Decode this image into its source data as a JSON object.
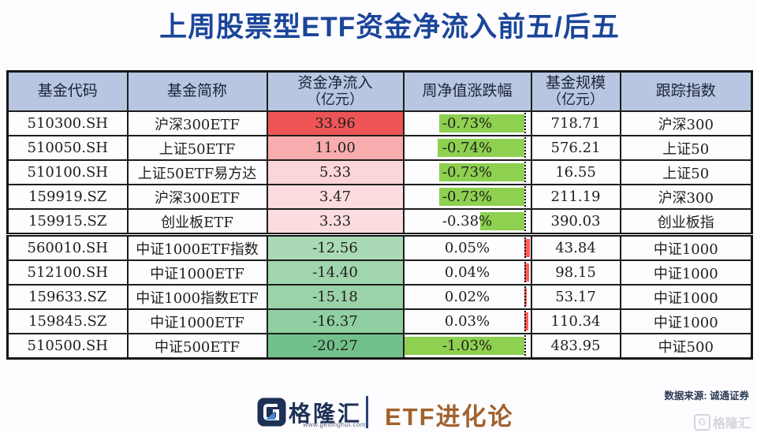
{
  "title": {
    "text": "上周股票型ETF资金净流入前五/后五",
    "color": "#1b459a"
  },
  "table": {
    "headers": [
      {
        "label": "基金代码",
        "sub": ""
      },
      {
        "label": "基金简称",
        "sub": ""
      },
      {
        "label": "资金净流入",
        "sub": "（亿元）"
      },
      {
        "label": "周净值涨跌幅",
        "sub": ""
      },
      {
        "label": "基金规模",
        "sub": "（亿元）"
      },
      {
        "label": "跟踪指数",
        "sub": ""
      }
    ],
    "bar": {
      "axis_pct": 95.37,
      "range": 1.08,
      "neg_color": "#8ed04f",
      "pos_color": "#ff5d5d"
    },
    "rows": [
      {
        "code": "510300.SH",
        "name": "沪深300ETF",
        "flow": "33.96",
        "flow_bg": "#ee5456",
        "change": "-0.73%",
        "change_value": -0.73,
        "scale": "718.71",
        "index": "沪深300",
        "group": "top"
      },
      {
        "code": "510050.SH",
        "name": "上证50ETF",
        "flow": "11.00",
        "flow_bg": "#f8acae",
        "change": "-0.74%",
        "change_value": -0.74,
        "scale": "576.21",
        "index": "上证50",
        "group": "top"
      },
      {
        "code": "510100.SH",
        "name": "上证50ETF易方达",
        "flow": "5.33",
        "flow_bg": "#fbd5d7",
        "change": "-0.73%",
        "change_value": -0.73,
        "scale": "16.55",
        "index": "上证50",
        "group": "top"
      },
      {
        "code": "159919.SZ",
        "name": "沪深300ETF",
        "flow": "3.47",
        "flow_bg": "#fcdcde",
        "change": "-0.73%",
        "change_value": -0.73,
        "scale": "211.19",
        "index": "沪深300",
        "group": "top"
      },
      {
        "code": "159915.SZ",
        "name": "创业板ETF",
        "flow": "3.33",
        "flow_bg": "#fcdddf",
        "change": "-0.38%",
        "change_value": -0.38,
        "scale": "390.03",
        "index": "创业板指",
        "group": "top"
      },
      {
        "code": "560010.SH",
        "name": "中证1000ETF指数",
        "flow": "-12.56",
        "flow_bg": "#aad9b6",
        "change": "0.05%",
        "change_value": 0.05,
        "scale": "43.84",
        "index": "中证1000",
        "group": "bottom"
      },
      {
        "code": "512100.SH",
        "name": "中证1000ETF",
        "flow": "-14.40",
        "flow_bg": "#a0d5ae",
        "change": "0.04%",
        "change_value": 0.04,
        "scale": "98.15",
        "index": "中证1000",
        "group": "bottom"
      },
      {
        "code": "159633.SZ",
        "name": "中证1000指数ETF",
        "flow": "-15.18",
        "flow_bg": "#9bd3a9",
        "change": "0.02%",
        "change_value": 0.02,
        "scale": "53.17",
        "index": "中证1000",
        "group": "bottom"
      },
      {
        "code": "159845.SZ",
        "name": "中证1000ETF",
        "flow": "-16.37",
        "flow_bg": "#90cfa1",
        "change": "0.03%",
        "change_value": 0.03,
        "scale": "110.34",
        "index": "中证1000",
        "group": "bottom"
      },
      {
        "code": "510500.SH",
        "name": "中证500ETF",
        "flow": "-20.27",
        "flow_bg": "#73c18a",
        "change": "-1.03%",
        "change_value": -1.03,
        "scale": "483.95",
        "index": "中证500",
        "group": "bottom"
      }
    ]
  },
  "footer": {
    "brand_name": "格隆汇",
    "brand_url": "www.gelonghui.com",
    "brand_colors": {
      "navy": "#1d3056",
      "accent": "#4a83d6"
    },
    "etf_label": "ETF进化论",
    "source": "数据来源: 诚通证券",
    "watermark_g": "G",
    "watermark_text": "格隆汇"
  },
  "chart_data": {
    "type": "table",
    "title": "上周股票型ETF资金净流入前五/后五",
    "columns": [
      "基金代码",
      "基金简称",
      "资金净流入（亿元）",
      "周净值涨跌幅",
      "基金规模（亿元）",
      "跟踪指数"
    ],
    "rows": [
      [
        "510300.SH",
        "沪深300ETF",
        33.96,
        "-0.73%",
        718.71,
        "沪深300"
      ],
      [
        "510050.SH",
        "上证50ETF",
        11.0,
        "-0.74%",
        576.21,
        "上证50"
      ],
      [
        "510100.SH",
        "上证50ETF易方达",
        5.33,
        "-0.73%",
        16.55,
        "上证50"
      ],
      [
        "159919.SZ",
        "沪深300ETF",
        3.47,
        "-0.73%",
        211.19,
        "沪深300"
      ],
      [
        "159915.SZ",
        "创业板ETF",
        3.33,
        "-0.38%",
        390.03,
        "创业板指"
      ],
      [
        "560010.SH",
        "中证1000ETF指数",
        -12.56,
        "0.05%",
        43.84,
        "中证1000"
      ],
      [
        "512100.SH",
        "中证1000ETF",
        -14.4,
        "0.04%",
        98.15,
        "中证1000"
      ],
      [
        "159633.SZ",
        "中证1000指数ETF",
        -15.18,
        "0.02%",
        53.17,
        "中证1000"
      ],
      [
        "159845.SZ",
        "中证1000ETF",
        -16.37,
        "0.03%",
        110.34,
        "中证1000"
      ],
      [
        "510500.SH",
        "中证500ETF",
        -20.27,
        "-1.03%",
        483.95,
        "中证500"
      ]
    ],
    "notes": {
      "flow_column_formatting": "red-to-green color scale on 资金净流入",
      "change_column_formatting": "data bars, axis at right (dotted), negative green left, positive red right",
      "change_bar_scale_max_abs": 1.08
    }
  }
}
